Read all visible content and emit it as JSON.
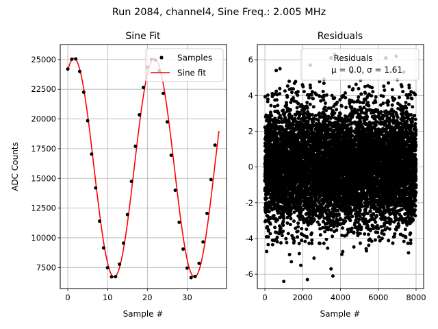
{
  "figure": {
    "suptitle": "Run 2084, channel4, Sine Freq.: 2.005 MHz"
  },
  "chart_data": [
    {
      "type": "line",
      "title": "Sine Fit",
      "xlabel": "Sample #",
      "ylabel": "ADC Counts",
      "xlim": [
        -1.9,
        39.9
      ],
      "ylim": [
        5730,
        26260
      ],
      "x_ticks": [
        0,
        10,
        20,
        30
      ],
      "y_ticks": [
        7500,
        10000,
        12500,
        15000,
        17500,
        20000,
        22500,
        25000
      ],
      "grid": true,
      "legend": {
        "position": "upper-right",
        "entries": [
          "Samples",
          "Sine fit"
        ]
      },
      "fit": {
        "offset": 15900,
        "amplitude": 9200,
        "period": 20.2,
        "phase_center": 1.55,
        "x_range": [
          0,
          38
        ]
      },
      "series": [
        {
          "name": "Samples",
          "style": "points",
          "color": "#000000",
          "x": [
            0,
            1,
            2,
            3,
            4,
            5,
            6,
            7,
            8,
            9,
            10,
            11,
            12,
            13,
            14,
            15,
            16,
            17,
            18,
            19,
            20,
            21,
            22,
            23,
            24,
            25,
            26,
            27,
            28,
            29,
            30,
            31,
            32,
            33,
            34,
            35,
            36,
            37
          ],
          "y": [
            24200,
            25020,
            25050,
            24000,
            22250,
            19850,
            17050,
            14200,
            11400,
            9150,
            7480,
            6720,
            6730,
            7780,
            9550,
            11950,
            14750,
            17700,
            20350,
            22650,
            24350,
            25000,
            24950,
            24050,
            22150,
            19750,
            16950,
            14000,
            11300,
            9050,
            7450,
            6650,
            6750,
            7850,
            9650,
            12050,
            14900,
            17800
          ]
        },
        {
          "name": "Sine fit",
          "style": "line",
          "color": "#ff0000"
        }
      ]
    },
    {
      "type": "scatter",
      "title": "Residuals",
      "xlabel": "Sample #",
      "ylabel": "",
      "xlim": [
        -400,
        8400
      ],
      "ylim": [
        -6.8,
        6.85
      ],
      "x_ticks": [
        0,
        2000,
        4000,
        6000,
        8000
      ],
      "y_ticks": [
        -6,
        -4,
        -2,
        0,
        2,
        4,
        6
      ],
      "grid": true,
      "legend": {
        "position": "upper-right",
        "title": "Residuals",
        "text": "μ = 0.0, σ = 1.61"
      },
      "residual_stats": {
        "n": 8000,
        "mean": 0.0,
        "sigma": 1.61
      },
      "outliers": [
        {
          "x": 800,
          "y": 5.5
        },
        {
          "x": 600,
          "y": 5.4
        },
        {
          "x": 2400,
          "y": 5.7
        },
        {
          "x": 3500,
          "y": 6.1
        },
        {
          "x": 3700,
          "y": 6.3
        },
        {
          "x": 4600,
          "y": 5.3
        },
        {
          "x": 6400,
          "y": 6.1
        },
        {
          "x": 6950,
          "y": 6.2
        },
        {
          "x": 7350,
          "y": 5.3
        },
        {
          "x": 1000,
          "y": -6.4
        },
        {
          "x": 2250,
          "y": -6.3
        },
        {
          "x": 3600,
          "y": -6.1
        },
        {
          "x": 3500,
          "y": -5.7
        },
        {
          "x": 1400,
          "y": -5.3
        },
        {
          "x": 2600,
          "y": -5.1
        },
        {
          "x": 1900,
          "y": -5.5
        },
        {
          "x": 7600,
          "y": -4.8
        }
      ]
    }
  ]
}
